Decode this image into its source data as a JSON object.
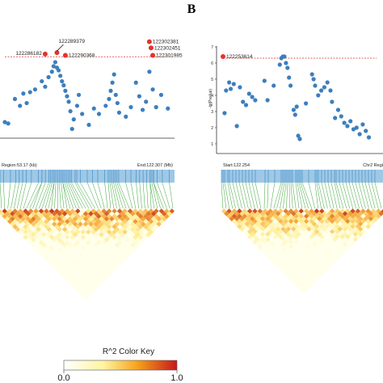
{
  "panel_label": "B",
  "colors": {
    "point": "#3d7ebd",
    "highlight": "#e4322b",
    "threshold": "#d9312a",
    "strip": "#9ec8e6",
    "tick": "#4a8fc7",
    "connector": "#3aa335",
    "ld_low": "#fff6c8",
    "ld_mid": "#f7b848",
    "ld_high": "#b51f14"
  },
  "region_left": {
    "start_label": "Region:53.17 (kb)",
    "end_label": "End:122.307 (Mb)"
  },
  "region_right": {
    "start_label": "Start:122.254",
    "end_label": "Chr2 Regi"
  },
  "color_key": {
    "title": "R^2 Color Key",
    "min_label": "0.0",
    "max_label": "1.0"
  },
  "chart_data": [
    {
      "type": "scatter",
      "ylabel": "",
      "xlabel": "",
      "ylim": [
        0,
        7
      ],
      "threshold": 5.8,
      "points": [
        {
          "x": 0.0,
          "y": 1.0
        },
        {
          "x": 0.02,
          "y": 0.9
        },
        {
          "x": 0.06,
          "y": 2.7
        },
        {
          "x": 0.09,
          "y": 2.2
        },
        {
          "x": 0.11,
          "y": 3.1
        },
        {
          "x": 0.13,
          "y": 2.4
        },
        {
          "x": 0.15,
          "y": 3.2
        },
        {
          "x": 0.18,
          "y": 3.4
        },
        {
          "x": 0.22,
          "y": 4.0
        },
        {
          "x": 0.24,
          "y": 3.6
        },
        {
          "x": 0.26,
          "y": 4.3
        },
        {
          "x": 0.28,
          "y": 4.7
        },
        {
          "x": 0.29,
          "y": 5.1
        },
        {
          "x": 0.3,
          "y": 5.4
        },
        {
          "x": 0.31,
          "y": 5.0
        },
        {
          "x": 0.32,
          "y": 4.8
        },
        {
          "x": 0.33,
          "y": 4.4
        },
        {
          "x": 0.34,
          "y": 4.0
        },
        {
          "x": 0.35,
          "y": 3.7
        },
        {
          "x": 0.36,
          "y": 3.3
        },
        {
          "x": 0.37,
          "y": 2.9
        },
        {
          "x": 0.38,
          "y": 2.5
        },
        {
          "x": 0.39,
          "y": 1.8
        },
        {
          "x": 0.4,
          "y": 0.5
        },
        {
          "x": 0.41,
          "y": 1.2
        },
        {
          "x": 0.43,
          "y": 2.2
        },
        {
          "x": 0.44,
          "y": 3.0
        },
        {
          "x": 0.46,
          "y": 1.6
        },
        {
          "x": 0.5,
          "y": 0.8
        },
        {
          "x": 0.53,
          "y": 2.0
        },
        {
          "x": 0.56,
          "y": 1.6
        },
        {
          "x": 0.6,
          "y": 2.2
        },
        {
          "x": 0.62,
          "y": 2.7
        },
        {
          "x": 0.63,
          "y": 3.3
        },
        {
          "x": 0.64,
          "y": 3.9
        },
        {
          "x": 0.65,
          "y": 4.5
        },
        {
          "x": 0.66,
          "y": 3.0
        },
        {
          "x": 0.67,
          "y": 2.4
        },
        {
          "x": 0.68,
          "y": 1.7
        },
        {
          "x": 0.72,
          "y": 1.4
        },
        {
          "x": 0.75,
          "y": 2.1
        },
        {
          "x": 0.78,
          "y": 3.9
        },
        {
          "x": 0.8,
          "y": 2.9
        },
        {
          "x": 0.82,
          "y": 1.9
        },
        {
          "x": 0.84,
          "y": 2.5
        },
        {
          "x": 0.86,
          "y": 4.7
        },
        {
          "x": 0.88,
          "y": 3.4
        },
        {
          "x": 0.9,
          "y": 2.1
        },
        {
          "x": 0.93,
          "y": 3.0
        },
        {
          "x": 0.97,
          "y": 2.0
        }
      ],
      "highlighted": [
        {
          "label": "122286182",
          "x": 0.24,
          "y": 6.0
        },
        {
          "label": "122289379",
          "x": 0.31,
          "y": 6.1
        },
        {
          "label": "122290368",
          "x": 0.36,
          "y": 5.9
        },
        {
          "label": "122302381",
          "x": 0.86,
          "y": 6.9
        },
        {
          "label": "122302451",
          "x": 0.87,
          "y": 6.45
        },
        {
          "label": "122301985",
          "x": 0.88,
          "y": 5.9
        }
      ]
    },
    {
      "type": "scatter",
      "ylabel": "-lg(Pvalue)",
      "xlabel": "",
      "ylim": [
        0.5,
        7
      ],
      "yticks": [
        1,
        2,
        3,
        4,
        5,
        6,
        7
      ],
      "threshold": 6.3,
      "points": [
        {
          "x": 0.01,
          "y": 2.9
        },
        {
          "x": 0.02,
          "y": 4.3
        },
        {
          "x": 0.04,
          "y": 4.8
        },
        {
          "x": 0.05,
          "y": 4.4
        },
        {
          "x": 0.07,
          "y": 4.7
        },
        {
          "x": 0.09,
          "y": 2.1
        },
        {
          "x": 0.11,
          "y": 4.5
        },
        {
          "x": 0.13,
          "y": 3.6
        },
        {
          "x": 0.15,
          "y": 3.4
        },
        {
          "x": 0.17,
          "y": 4.1
        },
        {
          "x": 0.19,
          "y": 3.9
        },
        {
          "x": 0.21,
          "y": 3.7
        },
        {
          "x": 0.27,
          "y": 4.9
        },
        {
          "x": 0.29,
          "y": 3.7
        },
        {
          "x": 0.33,
          "y": 4.6
        },
        {
          "x": 0.37,
          "y": 5.9
        },
        {
          "x": 0.38,
          "y": 6.3
        },
        {
          "x": 0.39,
          "y": 6.4
        },
        {
          "x": 0.4,
          "y": 6.4
        },
        {
          "x": 0.41,
          "y": 6.0
        },
        {
          "x": 0.42,
          "y": 5.7
        },
        {
          "x": 0.43,
          "y": 5.1
        },
        {
          "x": 0.44,
          "y": 4.6
        },
        {
          "x": 0.46,
          "y": 3.1
        },
        {
          "x": 0.47,
          "y": 2.8
        },
        {
          "x": 0.48,
          "y": 3.3
        },
        {
          "x": 0.49,
          "y": 1.5
        },
        {
          "x": 0.5,
          "y": 1.3
        },
        {
          "x": 0.54,
          "y": 3.5
        },
        {
          "x": 0.58,
          "y": 5.3
        },
        {
          "x": 0.59,
          "y": 5.0
        },
        {
          "x": 0.6,
          "y": 4.6
        },
        {
          "x": 0.62,
          "y": 4.0
        },
        {
          "x": 0.64,
          "y": 4.3
        },
        {
          "x": 0.66,
          "y": 4.5
        },
        {
          "x": 0.68,
          "y": 4.8
        },
        {
          "x": 0.7,
          "y": 4.3
        },
        {
          "x": 0.71,
          "y": 3.6
        },
        {
          "x": 0.73,
          "y": 2.6
        },
        {
          "x": 0.75,
          "y": 3.1
        },
        {
          "x": 0.77,
          "y": 2.7
        },
        {
          "x": 0.79,
          "y": 2.3
        },
        {
          "x": 0.81,
          "y": 2.1
        },
        {
          "x": 0.83,
          "y": 2.4
        },
        {
          "x": 0.85,
          "y": 1.9
        },
        {
          "x": 0.87,
          "y": 2.0
        },
        {
          "x": 0.89,
          "y": 1.6
        },
        {
          "x": 0.91,
          "y": 2.2
        },
        {
          "x": 0.93,
          "y": 1.8
        },
        {
          "x": 0.95,
          "y": 1.4
        }
      ],
      "highlighted": [
        {
          "label": "122253614",
          "x": 0.0,
          "y": 6.4
        }
      ]
    }
  ]
}
